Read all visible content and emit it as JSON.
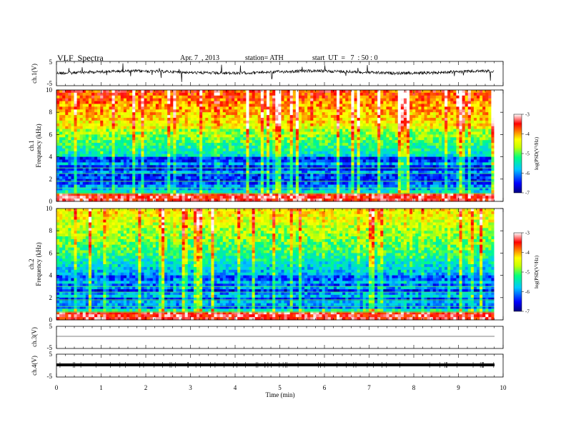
{
  "header": {
    "title": "VLF  Spectra",
    "date": "Apr. 7  , 2013",
    "station": "station= ATH",
    "start": "start  UT  =   7  : 50 : 0"
  },
  "chart_data": [
    {
      "type": "line",
      "panel": "ch1-waveform",
      "ylabel": "ch.1(V)",
      "ylim": [
        -5,
        5
      ],
      "yticks": [
        "5",
        "-5"
      ],
      "baseline": 0
    },
    {
      "type": "heatmap",
      "panel": "ch1-spectrogram",
      "ylabel": "ch.1\nFrequency (kHz)",
      "ylabel_top": "ch.1",
      "ylabel_bottom": "Frequency  (kHz)",
      "ylim": [
        0,
        10
      ],
      "yticks": [
        "0",
        "2",
        "4",
        "6",
        "8",
        "10"
      ],
      "colorbar": {
        "label": "log(PSD(V²/Hz)",
        "range": [
          -7,
          -3
        ],
        "ticks": [
          "-3",
          "-4",
          "-5",
          "-6",
          "-7"
        ]
      }
    },
    {
      "type": "heatmap",
      "panel": "ch2-spectrogram",
      "ylabel_top": "ch.2",
      "ylabel_bottom": "Frequency  (kHz)",
      "ylim": [
        0,
        10
      ],
      "yticks": [
        "0",
        "2",
        "4",
        "6",
        "8",
        "10"
      ],
      "colorbar": {
        "label": "log(PSD(V²/Hz)",
        "range": [
          -7,
          -3
        ],
        "ticks": [
          "-3",
          "-4",
          "-5",
          "-6",
          "-7"
        ]
      }
    },
    {
      "type": "line",
      "panel": "ch3-waveform",
      "ylabel": "ch.3(V)",
      "ylim": [
        -5,
        5
      ],
      "yticks": [
        "5",
        "-5"
      ],
      "baseline": 0
    },
    {
      "type": "line",
      "panel": "ch4-waveform",
      "ylabel": "ch.4(V)",
      "ylim": [
        -5,
        5
      ],
      "yticks": [
        "5",
        "-5"
      ],
      "baseline": 0
    }
  ],
  "xaxis": {
    "label": "Time  (min)",
    "range": [
      0,
      10
    ],
    "ticks": [
      "0",
      "1",
      "2",
      "3",
      "4",
      "5",
      "6",
      "7",
      "8",
      "9",
      "10"
    ],
    "data_end": 9.8
  },
  "colors": {
    "background": "#ffffff",
    "axis": "#000000",
    "scale": [
      "#000080",
      "#0000ff",
      "#00c8ff",
      "#00ff80",
      "#c8ff00",
      "#ffff00",
      "#ff8000",
      "#ff0000",
      "#ffffff"
    ]
  }
}
